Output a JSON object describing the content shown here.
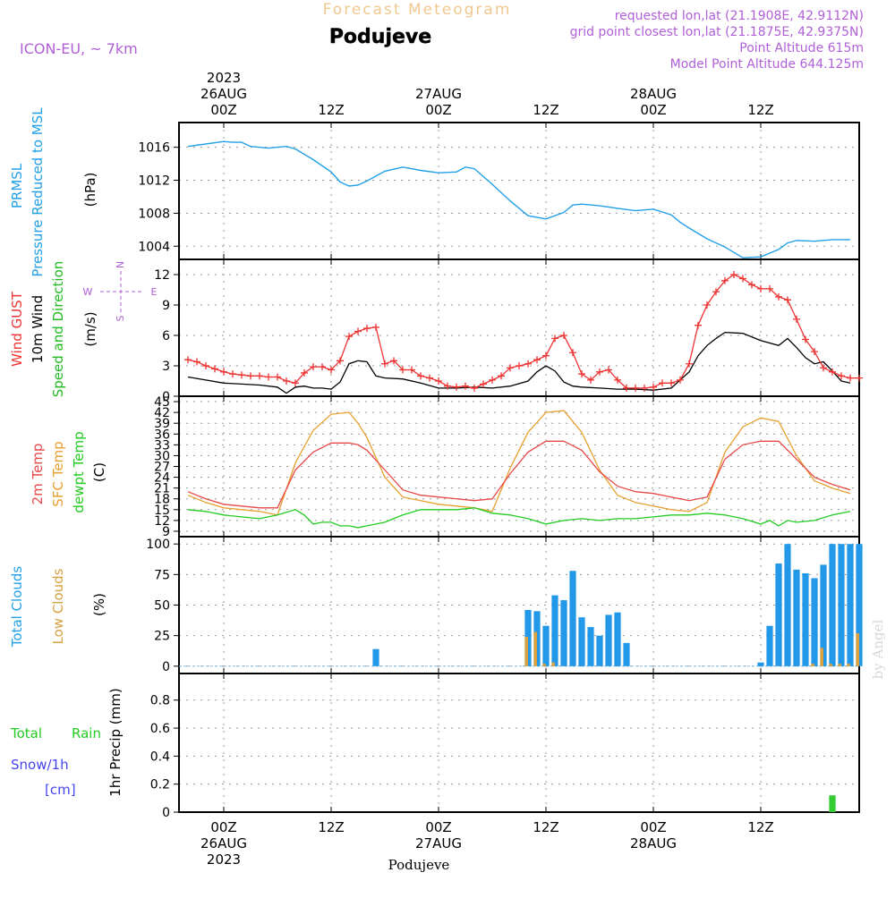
{
  "header": {
    "top_title": "Forecast Meteogram",
    "location": "Podujeve",
    "model": "ICON-EU, ~ 7km",
    "requested": "requested lon,lat (21.1908E, 42.9112N)",
    "grid_point": "grid point closest lon,lat (21.1875E, 42.9375N)",
    "point_altitude": "Point Altitude 615m",
    "model_altitude": "Model Point Altitude 644.125m",
    "credit": "by Angel",
    "bottom_location": "Podujeve"
  },
  "time_axis": {
    "top": [
      {
        "hour": 0,
        "lines": [
          "2023",
          "26AUG",
          "00Z"
        ]
      },
      {
        "hour": 12,
        "lines": [
          "12Z"
        ]
      },
      {
        "hour": 24,
        "lines": [
          "27AUG",
          "00Z"
        ]
      },
      {
        "hour": 36,
        "lines": [
          "12Z"
        ]
      },
      {
        "hour": 48,
        "lines": [
          "28AUG",
          "00Z"
        ]
      },
      {
        "hour": 60,
        "lines": [
          "12Z"
        ]
      }
    ],
    "bottom": [
      {
        "hour": 0,
        "lines": [
          "00Z",
          "26AUG",
          "2023"
        ]
      },
      {
        "hour": 12,
        "lines": [
          "12Z"
        ]
      },
      {
        "hour": 24,
        "lines": [
          "00Z",
          "27AUG"
        ]
      },
      {
        "hour": 36,
        "lines": [
          "12Z"
        ]
      },
      {
        "hour": 48,
        "lines": [
          "00Z",
          "28AUG"
        ]
      },
      {
        "hour": 60,
        "lines": [
          "12Z"
        ]
      }
    ],
    "range_hours": [
      -5,
      71
    ]
  },
  "panels": {
    "pressure": {
      "labels": [
        "PRMSL",
        "Pressure Reduced to MSL",
        "(hPa)"
      ],
      "yticks": [
        "1004",
        "1008",
        "1012",
        "1016"
      ]
    },
    "wind": {
      "labels": [
        "Wind GUST",
        "10m Wind",
        "Speed and Direction",
        "(m/s)"
      ],
      "yticks": [
        "0",
        "3",
        "6",
        "9",
        "12"
      ],
      "compass": {
        "n": "N",
        "s": "S",
        "w": "W",
        "e": "E"
      }
    },
    "temp": {
      "labels": [
        "2m Temp",
        "SFC Temp",
        "dewpt Temp",
        "(C)"
      ],
      "yticks": [
        "9",
        "12",
        "15",
        "18",
        "21",
        "24",
        "27",
        "30",
        "33",
        "36",
        "39",
        "42",
        "45"
      ]
    },
    "clouds": {
      "labels": [
        "Total Clouds",
        "Low Clouds",
        "(%)"
      ],
      "yticks": [
        "0",
        "25",
        "50",
        "75",
        "100"
      ]
    },
    "precip": {
      "labels": [
        "Total",
        "Rain",
        "Snow/1h",
        "[cm]",
        "1hr Precip (mm)"
      ],
      "yticks": [
        "0",
        "0.2",
        "0.4",
        "0.6",
        "0.8"
      ]
    }
  },
  "colors": {
    "pressure": "#22a0e8",
    "gust": "#ee3333",
    "wind": "#000000",
    "temp2m": "#e84848",
    "sfc": "#e8a030",
    "dewpt": "#22cc22",
    "total_clouds": "#2298e8",
    "low_clouds": "#d8a040",
    "rain": "#33cc33",
    "snow": "#4444ee",
    "model": "#b060d8",
    "title": "#f0c890"
  },
  "chart_data": [
    {
      "type": "line",
      "panel": "pressure",
      "ylabel": "(hPa)",
      "ylim": [
        1002.4,
        1019.0
      ],
      "series": [
        {
          "name": "PRMSL",
          "x": [
            -4,
            -2,
            0,
            1,
            2,
            3,
            5,
            7,
            8,
            10,
            12,
            13,
            14,
            15,
            16,
            18,
            20,
            22,
            24,
            26,
            27,
            28,
            30,
            32,
            34,
            36,
            38,
            39,
            40,
            42,
            44,
            46,
            48,
            50,
            51,
            52,
            54,
            56,
            58,
            60,
            62,
            63,
            64,
            66,
            68,
            70
          ],
          "y": [
            1016.1,
            1016.4,
            1016.7,
            1016.6,
            1016.6,
            1016.1,
            1015.9,
            1016.1,
            1015.8,
            1014.5,
            1013.0,
            1011.8,
            1011.3,
            1011.4,
            1011.9,
            1013.1,
            1013.6,
            1013.2,
            1012.9,
            1013.0,
            1013.6,
            1013.4,
            1011.5,
            1009.5,
            1007.7,
            1007.3,
            1008.1,
            1009.0,
            1009.1,
            1008.9,
            1008.6,
            1008.3,
            1008.5,
            1007.8,
            1006.9,
            1006.2,
            1004.9,
            1003.9,
            1002.6,
            1002.7,
            1003.6,
            1004.4,
            1004.7,
            1004.6,
            1004.8,
            1004.8
          ]
        }
      ]
    },
    {
      "type": "line",
      "panel": "wind",
      "ylabel": "(m/s)",
      "ylim": [
        0,
        13.5
      ],
      "series": [
        {
          "name": "Wind GUST",
          "marker": "+",
          "x": [
            -4,
            -3,
            -2,
            -1,
            0,
            1,
            2,
            3,
            4,
            5,
            6,
            7,
            8,
            9,
            10,
            11,
            12,
            13,
            14,
            15,
            16,
            17,
            18,
            19,
            20,
            21,
            22,
            23,
            24,
            25,
            26,
            27,
            28,
            29,
            30,
            31,
            32,
            33,
            34,
            35,
            36,
            37,
            38,
            39,
            40,
            41,
            42,
            43,
            44,
            45,
            46,
            47,
            48,
            49,
            50,
            51,
            52,
            53,
            54,
            55,
            56,
            57,
            58,
            59,
            60,
            61,
            62,
            63,
            64,
            65,
            66,
            67,
            68,
            69,
            70,
            71
          ],
          "y": [
            3.6,
            3.4,
            3.0,
            2.7,
            2.4,
            2.2,
            2.1,
            2.0,
            2.0,
            1.9,
            1.9,
            1.5,
            1.3,
            2.3,
            2.9,
            2.9,
            2.6,
            3.5,
            5.9,
            6.4,
            6.7,
            6.8,
            3.2,
            3.5,
            2.6,
            2.6,
            2.0,
            1.8,
            1.5,
            1.0,
            0.9,
            1.0,
            0.8,
            1.2,
            1.6,
            2.0,
            2.8,
            3.0,
            3.2,
            3.6,
            4.0,
            5.7,
            6.0,
            4.3,
            2.2,
            1.6,
            2.4,
            2.6,
            1.6,
            0.8,
            0.8,
            0.8,
            0.9,
            1.3,
            1.3,
            1.6,
            3.2,
            7.0,
            9.0,
            10.3,
            11.4,
            12.0,
            11.6,
            11.0,
            10.6,
            10.6,
            9.8,
            9.5,
            7.6,
            5.6,
            4.4,
            2.8,
            2.4,
            2.0,
            1.8,
            1.8
          ]
        },
        {
          "name": "10m Wind",
          "x": [
            -4,
            -2,
            0,
            2,
            4,
            6,
            7,
            8,
            9,
            10,
            11,
            12,
            13,
            14,
            15,
            16,
            17,
            18,
            20,
            22,
            24,
            26,
            28,
            30,
            32,
            34,
            35,
            36,
            37,
            38,
            39,
            40,
            42,
            44,
            46,
            48,
            50,
            52,
            53,
            54,
            55,
            56,
            58,
            60,
            62,
            63,
            64,
            65,
            66,
            67,
            68,
            69,
            70
          ],
          "y": [
            1.9,
            1.6,
            1.3,
            1.2,
            1.1,
            0.9,
            0.3,
            0.9,
            1.0,
            0.8,
            0.8,
            0.7,
            1.4,
            3.2,
            3.5,
            3.4,
            2.0,
            1.8,
            1.7,
            1.3,
            0.8,
            0.8,
            0.9,
            0.8,
            1.0,
            1.5,
            2.4,
            3.0,
            2.5,
            1.4,
            1.0,
            0.9,
            0.8,
            0.7,
            0.7,
            0.6,
            0.8,
            2.4,
            4.0,
            5.0,
            5.7,
            6.3,
            6.2,
            5.5,
            5.0,
            5.7,
            4.8,
            3.8,
            3.2,
            3.4,
            2.5,
            1.5,
            1.3
          ]
        }
      ]
    },
    {
      "type": "line",
      "panel": "temp",
      "ylabel": "(C)",
      "ylim": [
        7.5,
        46.5
      ],
      "series": [
        {
          "name": "2m Temp",
          "x": [
            -4,
            -2,
            0,
            2,
            4,
            6,
            8,
            10,
            12,
            14,
            15,
            16,
            18,
            20,
            22,
            24,
            26,
            28,
            30,
            32,
            34,
            36,
            38,
            40,
            42,
            44,
            46,
            48,
            50,
            52,
            54,
            56,
            58,
            60,
            62,
            64,
            66,
            68,
            70
          ],
          "y": [
            20.0,
            18.0,
            16.5,
            16.0,
            15.5,
            15.5,
            26.0,
            31.0,
            33.5,
            33.5,
            33.0,
            31.5,
            26.0,
            20.5,
            19.0,
            18.5,
            18.0,
            17.5,
            18.0,
            25.0,
            31.0,
            34.0,
            34.0,
            31.5,
            25.5,
            21.5,
            20.0,
            19.5,
            18.5,
            17.5,
            18.5,
            29.0,
            33.0,
            34.0,
            34.0,
            29.0,
            24.0,
            22.0,
            20.5
          ]
        },
        {
          "name": "SFC Temp",
          "x": [
            -4,
            -2,
            0,
            2,
            4,
            6,
            8,
            10,
            12,
            14,
            15,
            16,
            18,
            20,
            22,
            24,
            26,
            28,
            30,
            32,
            34,
            36,
            38,
            40,
            42,
            44,
            46,
            48,
            50,
            52,
            54,
            56,
            58,
            60,
            62,
            64,
            66,
            68,
            70
          ],
          "y": [
            19.0,
            17.0,
            15.5,
            15.0,
            14.5,
            13.5,
            28.0,
            37.0,
            41.5,
            42.0,
            39.0,
            35.0,
            24.0,
            18.5,
            17.5,
            16.5,
            16.0,
            15.5,
            14.5,
            26.5,
            36.5,
            42.0,
            42.5,
            36.5,
            26.0,
            19.0,
            17.0,
            16.0,
            15.0,
            14.5,
            17.0,
            31.0,
            38.0,
            40.5,
            39.5,
            30.0,
            23.0,
            21.0,
            19.5
          ]
        },
        {
          "name": "dewpt Temp",
          "x": [
            -4,
            -2,
            0,
            2,
            4,
            6,
            8,
            9,
            10,
            11,
            12,
            13,
            14,
            15,
            16,
            18,
            20,
            22,
            24,
            26,
            28,
            30,
            32,
            34,
            36,
            38,
            40,
            42,
            44,
            46,
            48,
            50,
            52,
            54,
            56,
            58,
            60,
            61,
            62,
            63,
            64,
            66,
            68,
            70
          ],
          "y": [
            15.0,
            14.5,
            13.5,
            13.0,
            12.5,
            13.5,
            15.0,
            13.5,
            11.0,
            11.5,
            11.5,
            10.5,
            10.5,
            10.0,
            10.5,
            11.5,
            13.5,
            15.0,
            15.0,
            15.0,
            15.5,
            14.0,
            13.5,
            12.5,
            11.0,
            12.0,
            12.5,
            12.0,
            12.5,
            12.5,
            13.0,
            13.5,
            13.5,
            14.0,
            13.5,
            12.5,
            11.0,
            12.0,
            10.5,
            12.0,
            11.5,
            12.0,
            13.5,
            14.5
          ]
        }
      ]
    },
    {
      "type": "bar",
      "panel": "clouds",
      "ylabel": "(%)",
      "ylim": [
        -6,
        106
      ],
      "series": [
        {
          "name": "Total Clouds",
          "x": [
            17,
            34,
            35,
            36,
            37,
            38,
            39,
            40,
            41,
            42,
            43,
            44,
            45,
            46,
            60,
            61,
            62,
            63,
            64,
            65,
            66,
            67,
            68,
            69,
            70,
            71
          ],
          "values": [
            14,
            46,
            45,
            33,
            58,
            54,
            78,
            40,
            32,
            25,
            42,
            44,
            19,
            0,
            3,
            33,
            84,
            100,
            79,
            76,
            72,
            83,
            100,
            100,
            100,
            100
          ]
        },
        {
          "name": "Low Clouds",
          "x": [
            34,
            35,
            36,
            37,
            66,
            67,
            68,
            69,
            70,
            71
          ],
          "values": [
            24,
            28,
            2,
            3,
            2,
            15,
            2,
            2,
            2,
            27
          ]
        }
      ]
    },
    {
      "type": "bar",
      "panel": "precip",
      "ylabel": "1hr Precip (mm)",
      "ylim": [
        0,
        0.99
      ],
      "series": [
        {
          "name": "Total Rain",
          "x": [
            68
          ],
          "values": [
            0.12
          ]
        },
        {
          "name": "Snow/1h",
          "x": [],
          "values": []
        }
      ]
    }
  ]
}
